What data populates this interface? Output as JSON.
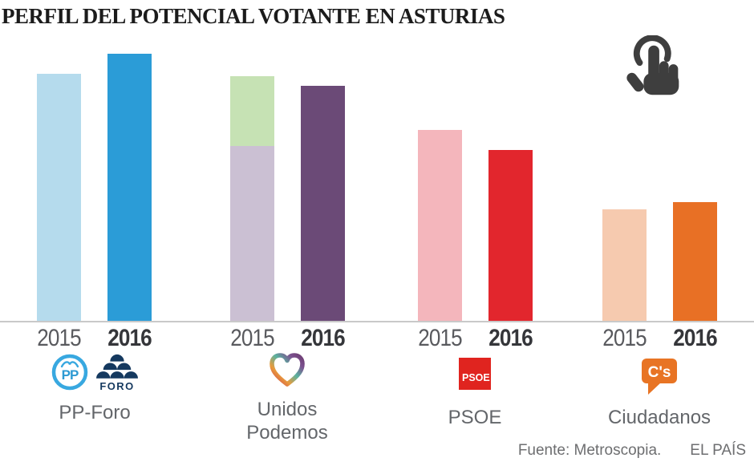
{
  "title": "PERFIL DEL POTENCIAL VOTANTE EN ASTURIAS",
  "footer": {
    "source": "Fuente: Metroscopia.",
    "brand": "EL PAÍS"
  },
  "icons": {
    "interaction_hint": "tap-hand-icon",
    "party_logos": [
      "pp-logo",
      "foro-logo",
      "unidos-podemos-heart-logo",
      "psoe-logo",
      "ciudadanos-logo"
    ]
  },
  "colors": {
    "axis_line": "#c9c9c9",
    "year_2015_label": "#595a5e",
    "year_2016_label": "#35363a",
    "party_label": "#63666a",
    "tap_icon": "#3e3e3e",
    "pp_2015": "#b5dbed",
    "pp_2016": "#2b9cd7",
    "up_2015_bottom": "#cbc0d3",
    "up_2015_top": "#c6e2b4",
    "up_2016": "#6b4a77",
    "psoe_2015": "#f4b6bc",
    "psoe_2016": "#e2262d",
    "cs_2015": "#f6caaf",
    "cs_2016": "#e87025"
  },
  "chart_data": {
    "type": "bar",
    "title": "PERFIL DEL POTENCIAL VOTANTE EN ASTURIAS",
    "source": "Fuente: Metroscopia.",
    "value_note": "Chart displays no numeric axis or data labels; values below are relative bar heights scaled so the tallest bar (PP-Foro 2016) = 100.",
    "categories": [
      "PP-Foro",
      "Unidos Podemos",
      "PSOE",
      "Ciudadanos"
    ],
    "series": [
      {
        "name": "2015",
        "values": [
          92.5,
          91.5,
          71.5,
          42
        ]
      },
      {
        "name": "2016",
        "values": [
          100,
          88,
          64,
          44.5
        ]
      }
    ],
    "stacked_note": "The Unidos Podemos 2015 bar is stacked: lilac bottom segment (65.5) plus light-green top segment (26).",
    "legend_position": "none",
    "grid": false,
    "ylim": [
      0,
      100
    ],
    "groups": [
      {
        "label": "PP-Foro",
        "bars": [
          {
            "year": "2015",
            "segments": [
              {
                "value": 92.5,
                "color": "#b5dbed"
              }
            ]
          },
          {
            "year": "2016",
            "segments": [
              {
                "value": 100,
                "color": "#2b9cd7"
              }
            ]
          }
        ]
      },
      {
        "label": "Unidos Podemos",
        "bars": [
          {
            "year": "2015",
            "segments": [
              {
                "value": 65.5,
                "color": "#cbc0d3"
              },
              {
                "value": 26,
                "color": "#c6e2b4"
              }
            ]
          },
          {
            "year": "2016",
            "segments": [
              {
                "value": 88,
                "color": "#6b4a77"
              }
            ]
          }
        ]
      },
      {
        "label": "PSOE",
        "bars": [
          {
            "year": "2015",
            "segments": [
              {
                "value": 71.5,
                "color": "#f4b6bc"
              }
            ]
          },
          {
            "year": "2016",
            "segments": [
              {
                "value": 64,
                "color": "#e2262d"
              }
            ]
          }
        ]
      },
      {
        "label": "Ciudadanos",
        "bars": [
          {
            "year": "2015",
            "segments": [
              {
                "value": 42,
                "color": "#f6caaf"
              }
            ]
          },
          {
            "year": "2016",
            "segments": [
              {
                "value": 44.5,
                "color": "#e87025"
              }
            ]
          }
        ]
      }
    ]
  }
}
